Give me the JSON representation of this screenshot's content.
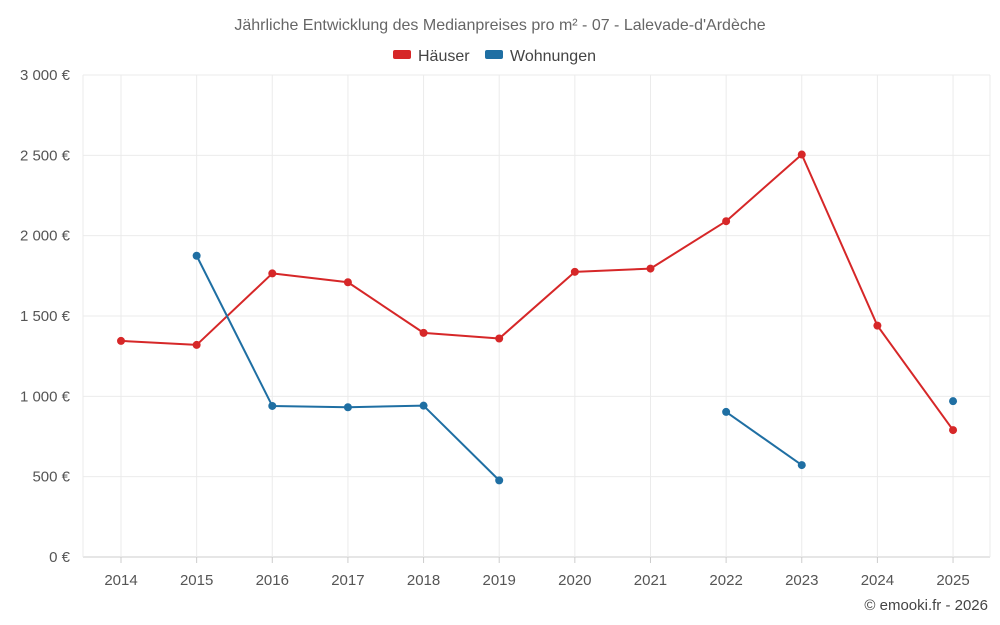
{
  "chart_data": {
    "type": "line",
    "title": "Jährliche Entwicklung des Medianpreises pro m² - 07 - Lalevade-d'Ardèche",
    "categories": [
      "2014",
      "2015",
      "2016",
      "2017",
      "2018",
      "2019",
      "2020",
      "2021",
      "2022",
      "2023",
      "2024",
      "2025"
    ],
    "y_ticks": [
      "0 €",
      "500 €",
      "1 000 €",
      "1 500 €",
      "2 000 €",
      "2 500 €",
      "3 000 €"
    ],
    "ylim": [
      0,
      3000
    ],
    "xlabel": "",
    "ylabel": "",
    "grid": true,
    "legend_position": "top-center",
    "series": [
      {
        "name": "Häuser",
        "color": "#d62728",
        "values": [
          1345,
          1320,
          1765,
          1710,
          1395,
          1360,
          1775,
          1795,
          2090,
          2505,
          1440,
          790
        ]
      },
      {
        "name": "Wohnungen",
        "color": "#1f6fa3",
        "values": [
          null,
          1875,
          940,
          932,
          942,
          477,
          null,
          null,
          903,
          572,
          null,
          970
        ]
      }
    ]
  },
  "credit": "© emooki.fr - 2026"
}
